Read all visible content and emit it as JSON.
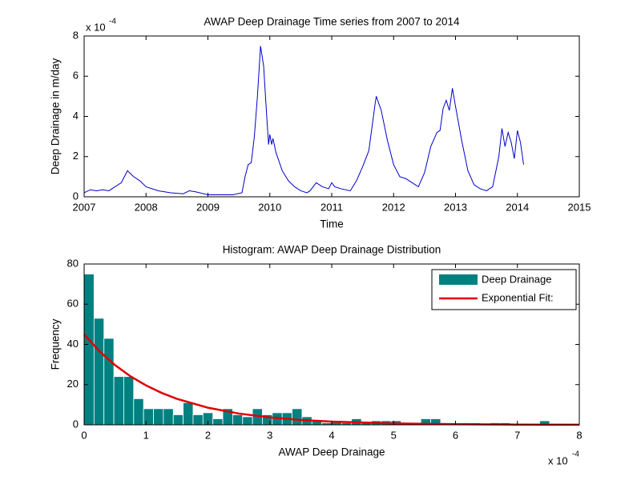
{
  "chart_data": [
    {
      "type": "line",
      "title": "AWAP Deep Drainage Time series from 2007 to 2014",
      "x_label": "Time",
      "y_label": "Deep Drainage in m/day",
      "y_multiplier": "x 10",
      "y_exponent": "-4",
      "x": [
        2007.0,
        2007.1,
        2007.2,
        2007.3,
        2007.4,
        2007.5,
        2007.6,
        2007.7,
        2007.8,
        2007.9,
        2008.0,
        2008.2,
        2008.4,
        2008.6,
        2008.7,
        2008.8,
        2009.0,
        2009.2,
        2009.4,
        2009.55,
        2009.6,
        2009.65,
        2009.7,
        2009.75,
        2009.8,
        2009.85,
        2009.9,
        2009.95,
        2009.98,
        2010.0,
        2010.03,
        2010.05,
        2010.1,
        2010.2,
        2010.3,
        2010.4,
        2010.5,
        2010.6,
        2010.65,
        2010.75,
        2010.85,
        2010.95,
        2011.0,
        2011.05,
        2011.15,
        2011.3,
        2011.4,
        2011.5,
        2011.6,
        2011.7,
        2011.72,
        2011.8,
        2011.9,
        2012.0,
        2012.1,
        2012.2,
        2012.3,
        2012.4,
        2012.5,
        2012.6,
        2012.7,
        2012.75,
        2012.8,
        2012.85,
        2012.9,
        2012.95,
        2013.0,
        2013.1,
        2013.2,
        2013.3,
        2013.4,
        2013.5,
        2013.6,
        2013.7,
        2013.75,
        2013.8,
        2013.85,
        2013.9,
        2013.95,
        2014.0,
        2014.05,
        2014.1
      ],
      "series": [
        {
          "color": "#0000cc",
          "values": [
            0.2,
            0.35,
            0.3,
            0.35,
            0.3,
            0.5,
            0.7,
            1.3,
            1.0,
            0.8,
            0.5,
            0.3,
            0.2,
            0.15,
            0.3,
            0.25,
            0.1,
            0.1,
            0.1,
            0.2,
            1.0,
            1.6,
            1.7,
            3.0,
            5.0,
            7.5,
            6.5,
            4.0,
            2.6,
            3.1,
            2.6,
            2.9,
            2.2,
            1.3,
            0.8,
            0.5,
            0.3,
            0.2,
            0.3,
            0.7,
            0.5,
            0.4,
            0.7,
            0.5,
            0.4,
            0.3,
            0.8,
            1.5,
            2.3,
            4.6,
            5.0,
            4.3,
            2.8,
            1.6,
            1.0,
            0.9,
            0.7,
            0.5,
            1.2,
            2.5,
            3.2,
            3.3,
            4.4,
            4.8,
            4.3,
            5.4,
            4.5,
            2.8,
            1.3,
            0.6,
            0.4,
            0.3,
            0.5,
            2.0,
            3.4,
            2.5,
            3.2,
            2.7,
            1.9,
            3.3,
            2.7,
            1.6
          ]
        }
      ],
      "xlim": [
        2007,
        2015
      ],
      "xticks": [
        2007,
        2008,
        2009,
        2010,
        2011,
        2012,
        2013,
        2014,
        2015
      ],
      "ylim": [
        0,
        8
      ],
      "yticks": [
        0,
        2,
        4,
        6,
        8
      ]
    },
    {
      "type": "histogram",
      "title": "Histogram: AWAP Deep Drainage Distribution",
      "x_label": "AWAP Deep Drainage",
      "y_label": "Frequency",
      "x_multiplier": "x 10",
      "x_exponent": "-4",
      "bins": [
        0,
        0.16,
        0.32,
        0.48,
        0.64,
        0.8,
        0.96,
        1.12,
        1.28,
        1.44,
        1.6,
        1.76,
        1.92,
        2.08,
        2.24,
        2.4,
        2.56,
        2.72,
        2.88,
        3.04,
        3.2,
        3.36,
        3.52,
        3.68,
        3.84,
        4,
        4.16,
        4.32,
        4.48,
        4.64,
        4.8,
        4.96,
        5.12,
        5.28,
        5.44,
        5.6,
        5.76,
        5.92,
        6.08,
        6.24,
        6.4,
        6.56,
        6.72,
        6.88,
        7.04,
        7.2,
        7.36,
        7.52,
        7.68,
        7.84,
        8
      ],
      "series": [
        {
          "name": "Deep Drainage",
          "color": "#008080",
          "values": [
            75,
            53,
            43,
            24,
            24,
            13,
            8,
            8,
            8,
            5,
            11,
            5,
            6,
            3,
            8,
            5,
            4,
            8,
            5,
            6,
            6,
            8,
            4,
            2,
            1,
            2,
            1,
            3,
            1,
            2,
            2,
            2,
            1,
            1,
            3,
            3,
            1,
            1,
            1,
            1,
            0,
            1,
            1,
            0,
            0,
            0,
            2,
            0,
            0,
            0
          ]
        },
        {
          "name": "Exponential Fit:",
          "color": "#e00000",
          "x": [
            0,
            0.25,
            0.5,
            0.75,
            1,
            1.25,
            1.5,
            2,
            2.5,
            3,
            3.5,
            4,
            5,
            6,
            7,
            8
          ],
          "values": [
            45,
            36.5,
            29.7,
            24.1,
            19.6,
            15.9,
            12.9,
            8.5,
            5.6,
            3.7,
            2.4,
            1.6,
            0.7,
            0.3,
            0.1,
            0.06
          ]
        }
      ],
      "xlim": [
        0,
        8
      ],
      "xticks": [
        0,
        1,
        2,
        3,
        4,
        5,
        6,
        7,
        8
      ],
      "ylim": [
        0,
        80
      ],
      "yticks": [
        0,
        20,
        40,
        60,
        80
      ],
      "legend": "northeast"
    }
  ]
}
